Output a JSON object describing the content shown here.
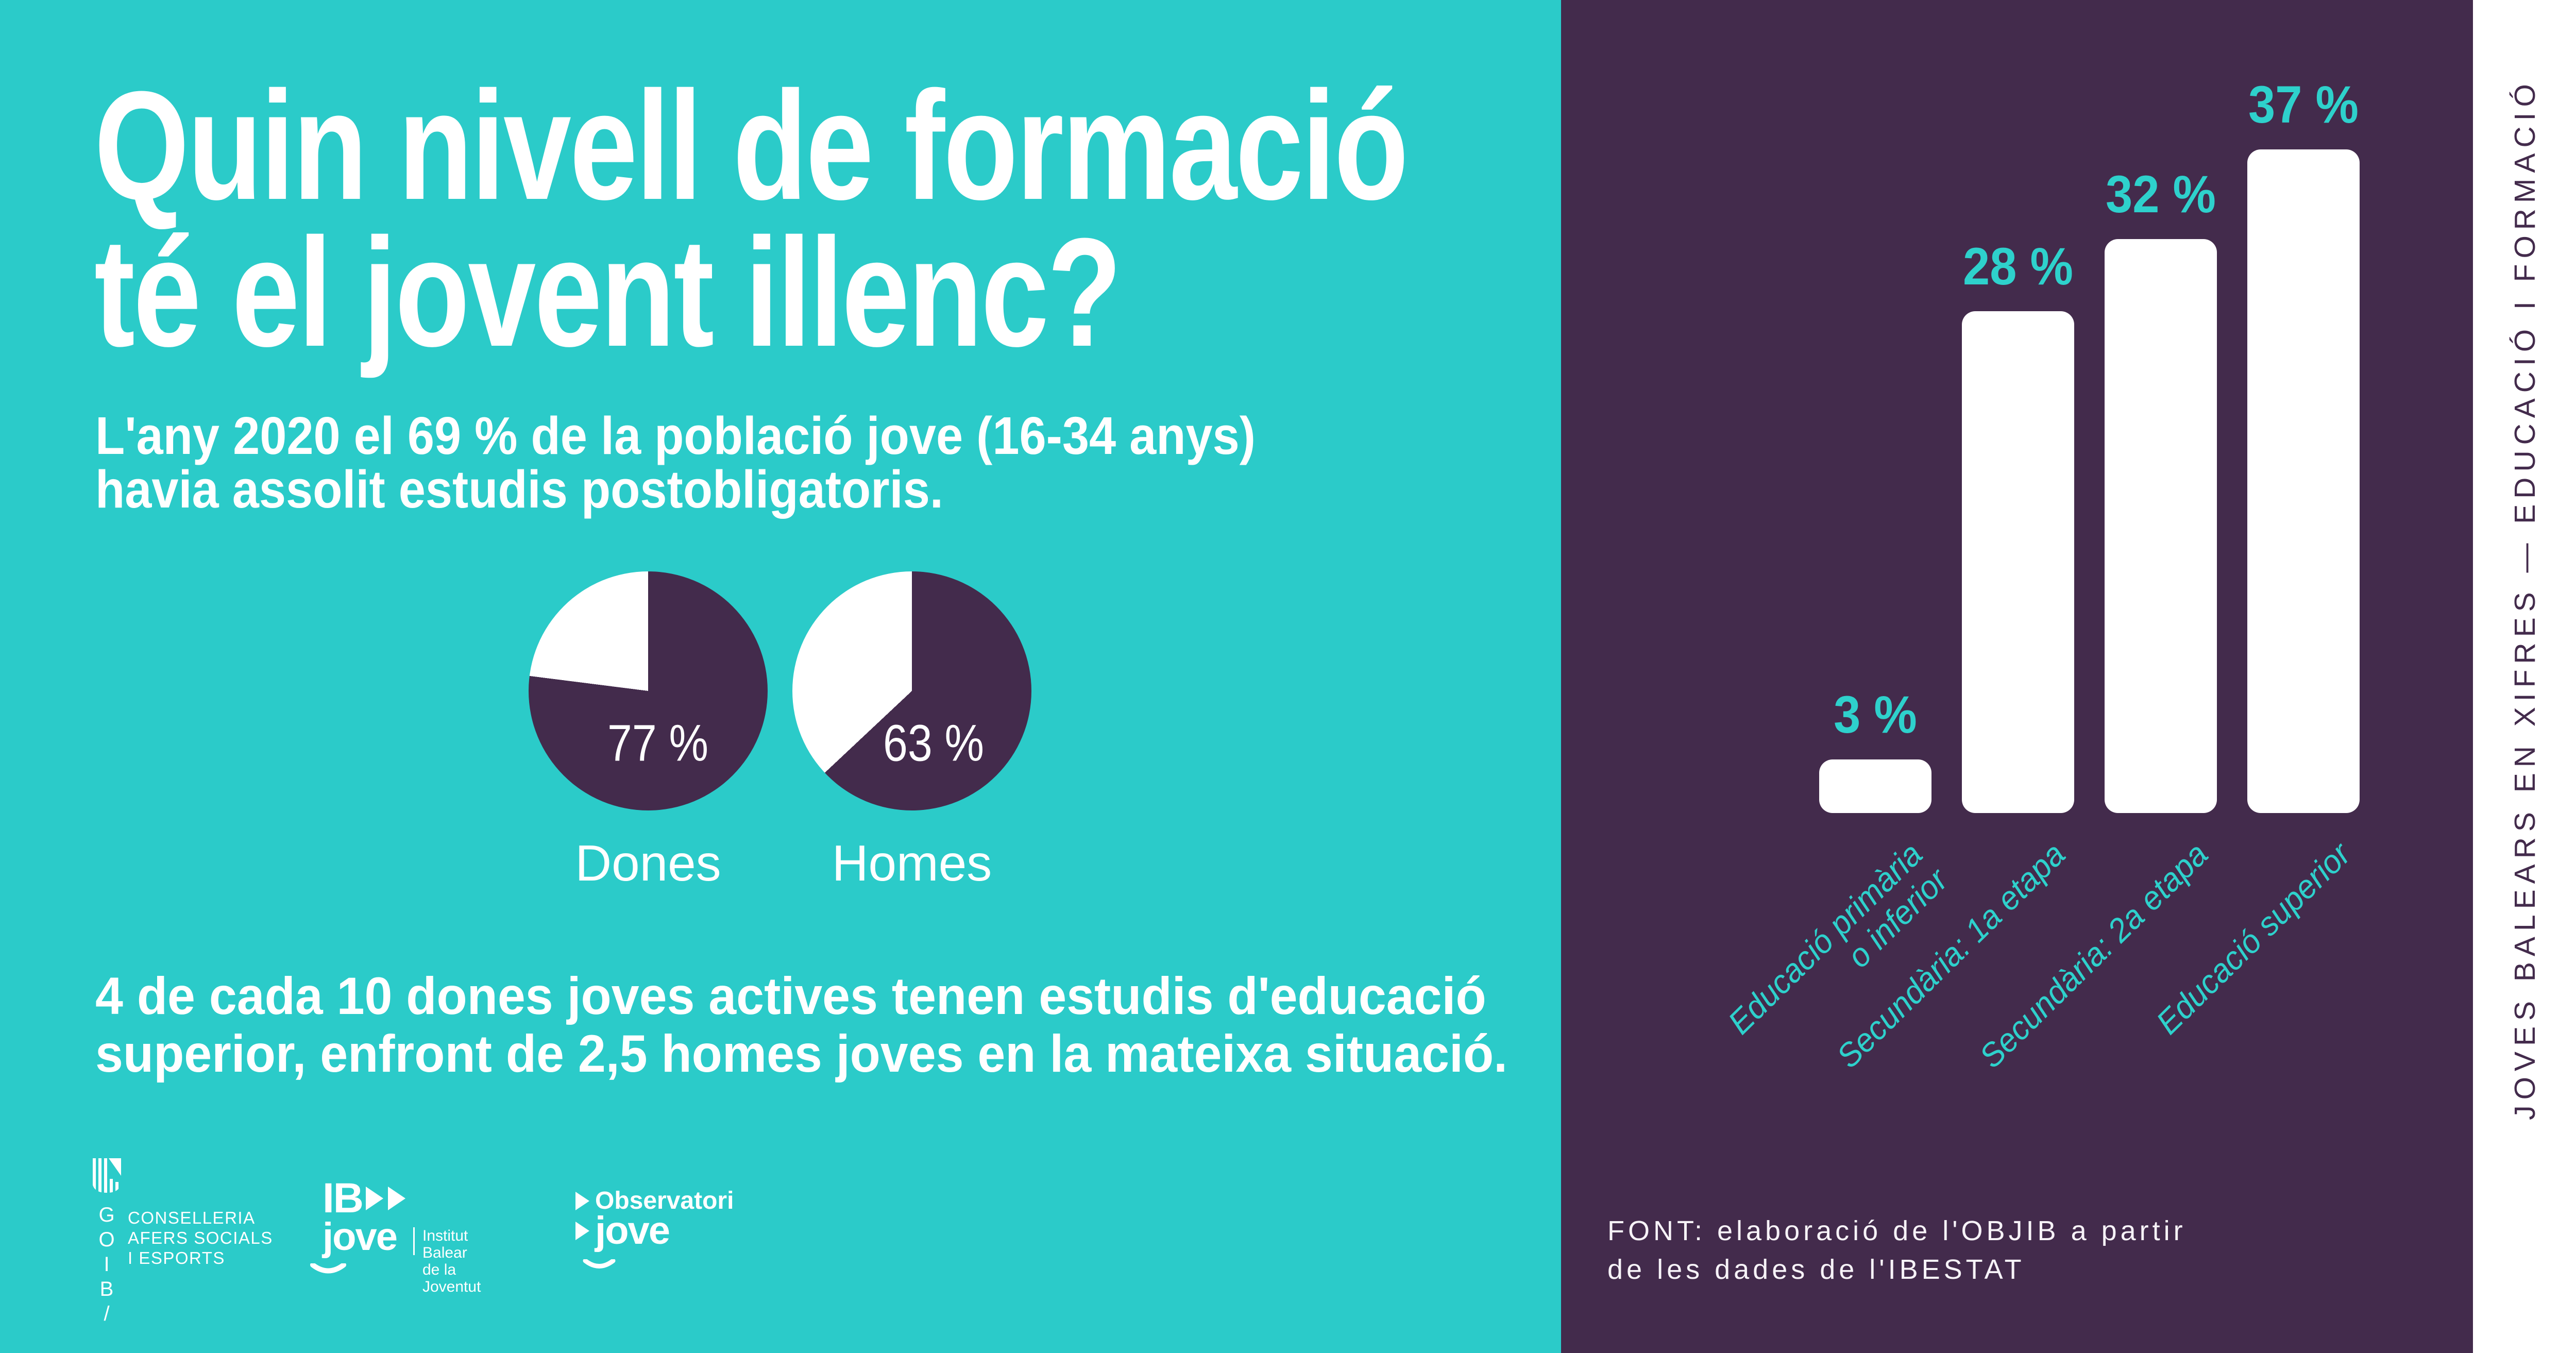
{
  "colors": {
    "teal_background": "#2BCBC9",
    "purple_background": "#432B4C",
    "accent_teal": "#2ED1CC",
    "white": "#ffffff"
  },
  "left_panel": {
    "title_line1": "Quin nivell de formació",
    "title_line2": "té el jovent illenc?",
    "subtitle_line1": "L'any 2020 el 69 % de la població jove (16-34 anys)",
    "subtitle_line2": "havia assolit estudis postobligatoris.",
    "footnote_line1": "4 de cada 10 dones joves actives tenen estudis d'educació",
    "footnote_line2": "superior, enfront de 2,5 homes joves en la mateixa situació.",
    "logos": {
      "goib": {
        "letters": [
          "G",
          "O",
          "I",
          "B",
          "/"
        ],
        "dept_line1": "CONSELLERIA",
        "dept_line2": "AFERS SOCIALS",
        "dept_line3": "I ESPORTS"
      },
      "ibjove": {
        "name_top": "IB",
        "name_bottom": "jove",
        "caption_line1": "Institut Balear",
        "caption_line2": "de la Joventut"
      },
      "observatori": {
        "line1": "Observatori",
        "line2": "jove"
      }
    }
  },
  "right_panel": {
    "source_line1": "FONT: elaboració de l'OBJIB a partir",
    "source_line2": "de les dades de l'IBESTAT"
  },
  "side_strip": {
    "text": "JOVES BALEARS EN XIFRES — EDUCACIÓ I FORMACIÓ"
  },
  "chart_data": [
    {
      "type": "pie",
      "title": "Dones",
      "values": [
        77,
        23
      ],
      "slice_labels": [
        "77 %",
        ""
      ],
      "slice_colors": [
        "#432B4C",
        "#ffffff"
      ],
      "legend_position": "none",
      "note": "share of young women with post-compulsory education"
    },
    {
      "type": "pie",
      "title": "Homes",
      "values": [
        63,
        37
      ],
      "slice_labels": [
        "63 %",
        ""
      ],
      "slice_colors": [
        "#432B4C",
        "#ffffff"
      ],
      "legend_position": "none",
      "note": "share of young men with post-compulsory education"
    },
    {
      "type": "bar",
      "categories": [
        "Educació primària o inferior",
        "Secundària: 1a etapa",
        "Secundària: 2a etapa",
        "Educació superior"
      ],
      "categories_display": [
        [
          "Educació primària",
          "o inferior"
        ],
        [
          "Secundària: 1a etapa"
        ],
        [
          "Secundària: 2a etapa"
        ],
        [
          "Educació superior"
        ]
      ],
      "values": [
        3,
        28,
        32,
        37
      ],
      "value_labels": [
        "3 %",
        "28 %",
        "32 %",
        "37 %"
      ],
      "title": "",
      "xlabel": "",
      "ylabel": "",
      "ylim": [
        0,
        40
      ],
      "grid": false,
      "bar_color": "#ffffff",
      "label_color": "#2ED1CC"
    }
  ]
}
